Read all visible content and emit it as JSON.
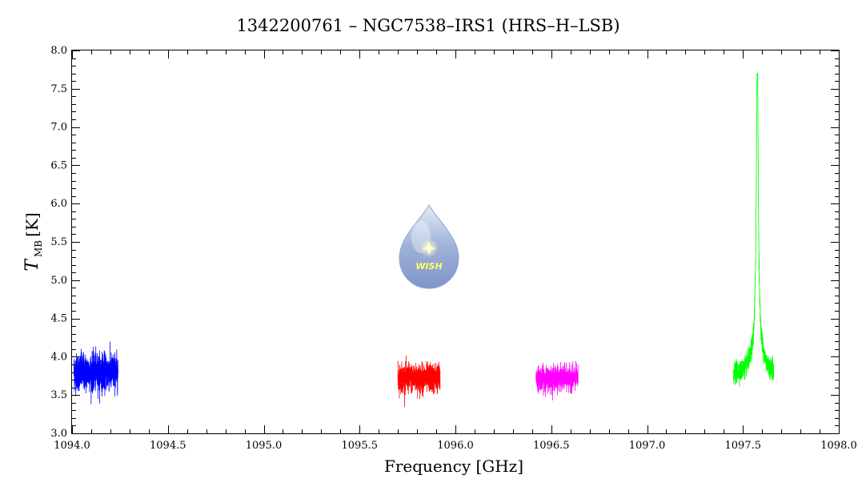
{
  "chart_data": {
    "type": "line",
    "title": "1342200761 – NGC7538–IRS1 (HRS–H–LSB)",
    "xlabel": "Frequency [GHz]",
    "ylabel_main": "T",
    "ylabel_sub": "MB",
    "ylabel_unit": "[K]",
    "xlim": [
      1094.0,
      1098.0
    ],
    "ylim": [
      3.0,
      8.0
    ],
    "xticks": [
      "1094.0",
      "1094.5",
      "1095.0",
      "1095.5",
      "1096.0",
      "1096.5",
      "1097.0",
      "1097.5",
      "1098.0"
    ],
    "yticks": [
      "3.0",
      "3.5",
      "4.0",
      "4.5",
      "5.0",
      "5.5",
      "6.0",
      "6.5",
      "7.0",
      "7.5",
      "8.0"
    ],
    "grid": false,
    "logo_text": "WISH",
    "series": [
      {
        "color": "#0000ff",
        "x_range": [
          1094.01,
          1094.24
        ],
        "baseline": 3.8,
        "noise": 0.22,
        "peak": null
      },
      {
        "color": "#ff0000",
        "x_range": [
          1095.7,
          1095.92
        ],
        "baseline": 3.72,
        "noise": 0.17,
        "peak": null
      },
      {
        "color": "#ff00ff",
        "x_range": [
          1096.42,
          1096.64
        ],
        "baseline": 3.72,
        "noise": 0.14,
        "peak": null
      },
      {
        "color": "#00ff00",
        "x_range": [
          1097.45,
          1097.66
        ],
        "baseline": 3.75,
        "noise": 0.12,
        "peak": {
          "center": 1097.575,
          "height": 3.9,
          "width": 0.006
        }
      }
    ]
  }
}
